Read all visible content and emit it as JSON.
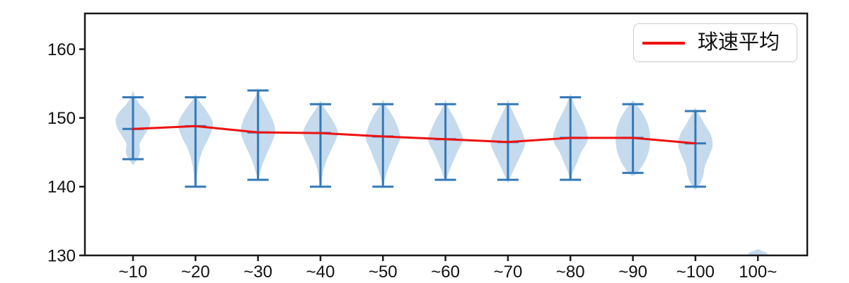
{
  "chart_data": {
    "type": "violin",
    "title": "",
    "grid": false,
    "legend": {
      "label": "球速平均",
      "position": "upper right"
    },
    "x_categories": [
      "~10",
      "~20",
      "~30",
      "~40",
      "~50",
      "~60",
      "~70",
      "~80",
      "~90",
      "~100",
      "100~"
    ],
    "x_positions": [
      1,
      2,
      3,
      4,
      5,
      6,
      7,
      8,
      9,
      10,
      11
    ],
    "xlim": [
      0.23,
      11.79
    ],
    "ylim": [
      130,
      165.2
    ],
    "y_ticks": [
      130,
      140,
      150,
      160
    ],
    "violins": [
      {
        "category": "~10",
        "min": 144,
        "max": 153,
        "mean": 148.4,
        "profile": [
          [
            143.2,
            0.02
          ],
          [
            144.2,
            0.3
          ],
          [
            145.2,
            0.42
          ],
          [
            146.2,
            0.38
          ],
          [
            147.3,
            0.62
          ],
          [
            148.6,
            0.92
          ],
          [
            149.8,
            1.0
          ],
          [
            150.9,
            0.78
          ],
          [
            151.9,
            0.42
          ],
          [
            152.9,
            0.15
          ],
          [
            153.8,
            0.02
          ]
        ]
      },
      {
        "category": "~20",
        "min": 140,
        "max": 153,
        "mean": 148.8,
        "profile": [
          [
            139.8,
            0.02
          ],
          [
            141.0,
            0.08
          ],
          [
            142.5,
            0.13
          ],
          [
            144.0,
            0.25
          ],
          [
            145.5,
            0.45
          ],
          [
            147.0,
            0.75
          ],
          [
            148.4,
            0.97
          ],
          [
            149.3,
            1.0
          ],
          [
            150.4,
            0.8
          ],
          [
            151.5,
            0.5
          ],
          [
            152.5,
            0.2
          ],
          [
            153.4,
            0.02
          ]
        ]
      },
      {
        "category": "~30",
        "min": 141,
        "max": 154,
        "mean": 147.9,
        "profile": [
          [
            140.9,
            0.02
          ],
          [
            142.0,
            0.12
          ],
          [
            143.5,
            0.3
          ],
          [
            145.0,
            0.55
          ],
          [
            146.5,
            0.82
          ],
          [
            148.0,
            1.0
          ],
          [
            149.5,
            0.88
          ],
          [
            151.0,
            0.6
          ],
          [
            152.3,
            0.33
          ],
          [
            153.3,
            0.13
          ],
          [
            154.3,
            0.02
          ]
        ]
      },
      {
        "category": "~40",
        "min": 140,
        "max": 152,
        "mean": 147.8,
        "profile": [
          [
            139.8,
            0.02
          ],
          [
            141.0,
            0.08
          ],
          [
            142.5,
            0.18
          ],
          [
            144.0,
            0.38
          ],
          [
            145.5,
            0.65
          ],
          [
            147.0,
            0.92
          ],
          [
            148.0,
            1.0
          ],
          [
            149.3,
            0.78
          ],
          [
            150.5,
            0.48
          ],
          [
            151.5,
            0.22
          ],
          [
            152.4,
            0.03
          ]
        ]
      },
      {
        "category": "~50",
        "min": 140,
        "max": 152,
        "mean": 147.3,
        "profile": [
          [
            139.8,
            0.02
          ],
          [
            141.0,
            0.1
          ],
          [
            142.5,
            0.28
          ],
          [
            144.0,
            0.52
          ],
          [
            145.5,
            0.75
          ],
          [
            147.0,
            1.0
          ],
          [
            148.5,
            0.88
          ],
          [
            150.0,
            0.62
          ],
          [
            151.0,
            0.38
          ],
          [
            152.0,
            0.12
          ],
          [
            152.6,
            0.02
          ]
        ]
      },
      {
        "category": "~60",
        "min": 141,
        "max": 152,
        "mean": 146.9,
        "profile": [
          [
            140.8,
            0.03
          ],
          [
            142.0,
            0.18
          ],
          [
            143.5,
            0.42
          ],
          [
            145.0,
            0.68
          ],
          [
            146.8,
            1.0
          ],
          [
            148.3,
            0.82
          ],
          [
            149.8,
            0.55
          ],
          [
            151.0,
            0.28
          ],
          [
            152.0,
            0.08
          ],
          [
            152.6,
            0.02
          ]
        ]
      },
      {
        "category": "~70",
        "min": 141,
        "max": 152,
        "mean": 146.5,
        "profile": [
          [
            140.6,
            0.03
          ],
          [
            141.8,
            0.22
          ],
          [
            143.2,
            0.48
          ],
          [
            144.8,
            0.78
          ],
          [
            146.3,
            1.0
          ],
          [
            147.8,
            0.85
          ],
          [
            149.3,
            0.58
          ],
          [
            150.8,
            0.3
          ],
          [
            152.0,
            0.08
          ],
          [
            152.6,
            0.02
          ]
        ]
      },
      {
        "category": "~80",
        "min": 141,
        "max": 153,
        "mean": 147.1,
        "profile": [
          [
            140.8,
            0.03
          ],
          [
            142.0,
            0.13
          ],
          [
            143.5,
            0.38
          ],
          [
            145.0,
            0.62
          ],
          [
            146.8,
            1.0
          ],
          [
            148.8,
            0.83
          ],
          [
            150.3,
            0.55
          ],
          [
            151.8,
            0.25
          ],
          [
            153.3,
            0.04
          ]
        ]
      },
      {
        "category": "~90",
        "min": 142,
        "max": 152,
        "mean": 147.1,
        "profile": [
          [
            141.6,
            0.08
          ],
          [
            142.4,
            0.38
          ],
          [
            143.8,
            0.72
          ],
          [
            145.3,
            0.93
          ],
          [
            146.8,
            1.0
          ],
          [
            148.3,
            0.95
          ],
          [
            149.8,
            0.75
          ],
          [
            151.1,
            0.45
          ],
          [
            152.1,
            0.15
          ],
          [
            152.5,
            0.02
          ]
        ]
      },
      {
        "category": "~100",
        "min": 140,
        "max": 151,
        "mean": 146.3,
        "profile": [
          [
            139.6,
            0.04
          ],
          [
            140.5,
            0.28
          ],
          [
            141.6,
            0.45
          ],
          [
            143.0,
            0.55
          ],
          [
            144.5,
            0.8
          ],
          [
            146.0,
            1.0
          ],
          [
            147.5,
            0.9
          ],
          [
            148.8,
            0.6
          ],
          [
            150.0,
            0.33
          ],
          [
            150.9,
            0.12
          ],
          [
            151.4,
            0.02
          ]
        ]
      },
      {
        "category": "100~",
        "min": null,
        "max": null,
        "mean": null,
        "profile": [
          [
            127.0,
            0.04
          ],
          [
            129.0,
            0.4
          ],
          [
            129.8,
            0.58
          ],
          [
            130.4,
            0.5
          ],
          [
            130.7,
            0.2
          ],
          [
            130.9,
            0.02
          ]
        ]
      }
    ],
    "line_series": {
      "name": "球速平均",
      "x_positions": [
        1,
        2,
        3,
        4,
        5,
        6,
        7,
        8,
        9,
        10
      ],
      "values": [
        148.4,
        148.8,
        147.9,
        147.8,
        147.3,
        146.9,
        146.5,
        147.1,
        147.1,
        146.3
      ]
    },
    "colors": {
      "violin_fill": "#c5daed",
      "stat_line": "#3579b8",
      "mean_line": "#ee1111",
      "axis": "#1a1a1a",
      "tick_label": "#111111",
      "legend_border": "#cccccc"
    }
  }
}
